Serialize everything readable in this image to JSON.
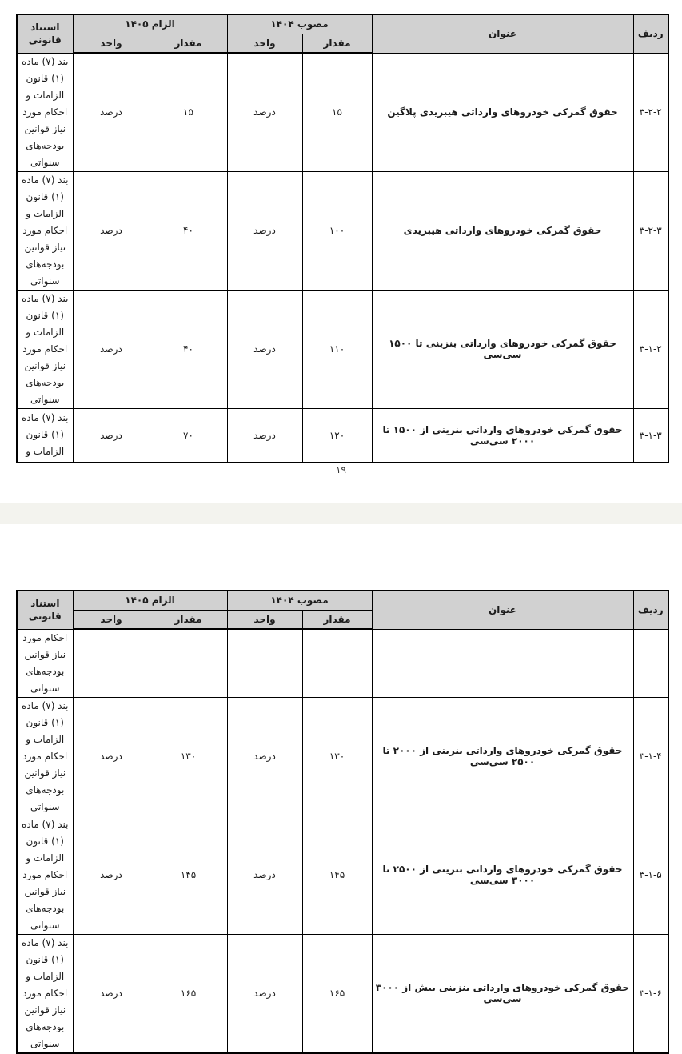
{
  "colors": {
    "header_bg": "#d1d1d1",
    "separator_band": "#f3f3ee",
    "table_border": "#000000"
  },
  "page": {
    "number": "۱۹"
  },
  "headers": {
    "radif": "ردیف",
    "onvan": "عنوان",
    "mosavab_1404": "مصوب ۱۴۰۴",
    "elzam_1405": "الزام ۱۴۰۵",
    "meghdar": "مقدار",
    "vahed": "واحد",
    "estenad_ghanooni": "استناد قانونی"
  },
  "table1": {
    "rows": [
      {
        "radif": "۳-۲-۲",
        "onvan": "حقوق گمرکی خودروهای وارداتی هیبریدی پلاگین",
        "mosavab_meghdar": "۱۵",
        "mosavab_vahed": "درصد",
        "elzam_meghdar": "۱۵",
        "elzam_vahed": "درصد",
        "estenad": "بند (۷) ماده (۱) قانون الزامات و احکام مورد نیاز قوانین بودجه‌های سنواتی"
      },
      {
        "radif": "۳-۲-۳",
        "onvan": "حقوق گمرکی خودروهای وارداتی هیبریدی",
        "mosavab_meghdar": "۱۰۰",
        "mosavab_vahed": "درصد",
        "elzam_meghdar": "۴۰",
        "elzam_vahed": "درصد",
        "estenad": "بند (۷) ماده (۱) قانون الزامات و احکام مورد نیاز قوانین بودجه‌های سنواتی"
      },
      {
        "radif": "۳-۱-۲",
        "onvan": "حقوق گمرکی خودروهای وارداتی بنزینی تا ۱۵۰۰ سی‌سی",
        "mosavab_meghdar": "۱۱۰",
        "mosavab_vahed": "درصد",
        "elzam_meghdar": "۴۰",
        "elzam_vahed": "درصد",
        "estenad": "بند (۷) ماده (۱) قانون الزامات و احکام مورد نیاز قوانین بودجه‌های سنواتی"
      },
      {
        "radif": "۳-۱-۳",
        "onvan": "حقوق گمرکی خودروهای وارداتی بنزینی از ۱۵۰۰ تا ۲۰۰۰ سی‌سی",
        "mosavab_meghdar": "۱۲۰",
        "mosavab_vahed": "درصد",
        "elzam_meghdar": "۷۰",
        "elzam_vahed": "درصد",
        "estenad": "بند (۷) ماده (۱) قانون الزامات و"
      }
    ]
  },
  "table2": {
    "rows": [
      {
        "radif": "",
        "onvan": "",
        "mosavab_meghdar": "",
        "mosavab_vahed": "",
        "elzam_meghdar": "",
        "elzam_vahed": "",
        "estenad": "احکام مورد نیاز قوانین بودجه‌های سنواتی"
      },
      {
        "radif": "۳-۱-۴",
        "onvan": "حقوق گمرکی خودروهای وارداتی بنزینی از ۲۰۰۰ تا ۲۵۰۰ سی‌سی",
        "mosavab_meghdar": "۱۳۰",
        "mosavab_vahed": "درصد",
        "elzam_meghdar": "۱۳۰",
        "elzam_vahed": "درصد",
        "estenad": "بند (۷) ماده (۱) قانون الزامات و احکام مورد نیاز قوانین بودجه‌های سنواتی"
      },
      {
        "radif": "۳-۱-۵",
        "onvan": "حقوق گمرکی خودروهای وارداتی بنزینی از ۲۵۰۰ تا ۳۰۰۰ سی‌سی",
        "mosavab_meghdar": "۱۴۵",
        "mosavab_vahed": "درصد",
        "elzam_meghdar": "۱۴۵",
        "elzam_vahed": "درصد",
        "estenad": "بند (۷) ماده (۱) قانون الزامات و احکام مورد نیاز قوانین بودجه‌های سنواتی"
      },
      {
        "radif": "۳-۱-۶",
        "onvan": "حقوق گمرکی خودروهای وارداتی بنزینی بیش از ۳۰۰۰ سی‌سی",
        "mosavab_meghdar": "۱۶۵",
        "mosavab_vahed": "درصد",
        "elzam_meghdar": "۱۶۵",
        "elzam_vahed": "درصد",
        "estenad": "بند (۷) ماده (۱) قانون الزامات و احکام مورد نیاز قوانین بودجه‌های سنواتی"
      }
    ]
  }
}
